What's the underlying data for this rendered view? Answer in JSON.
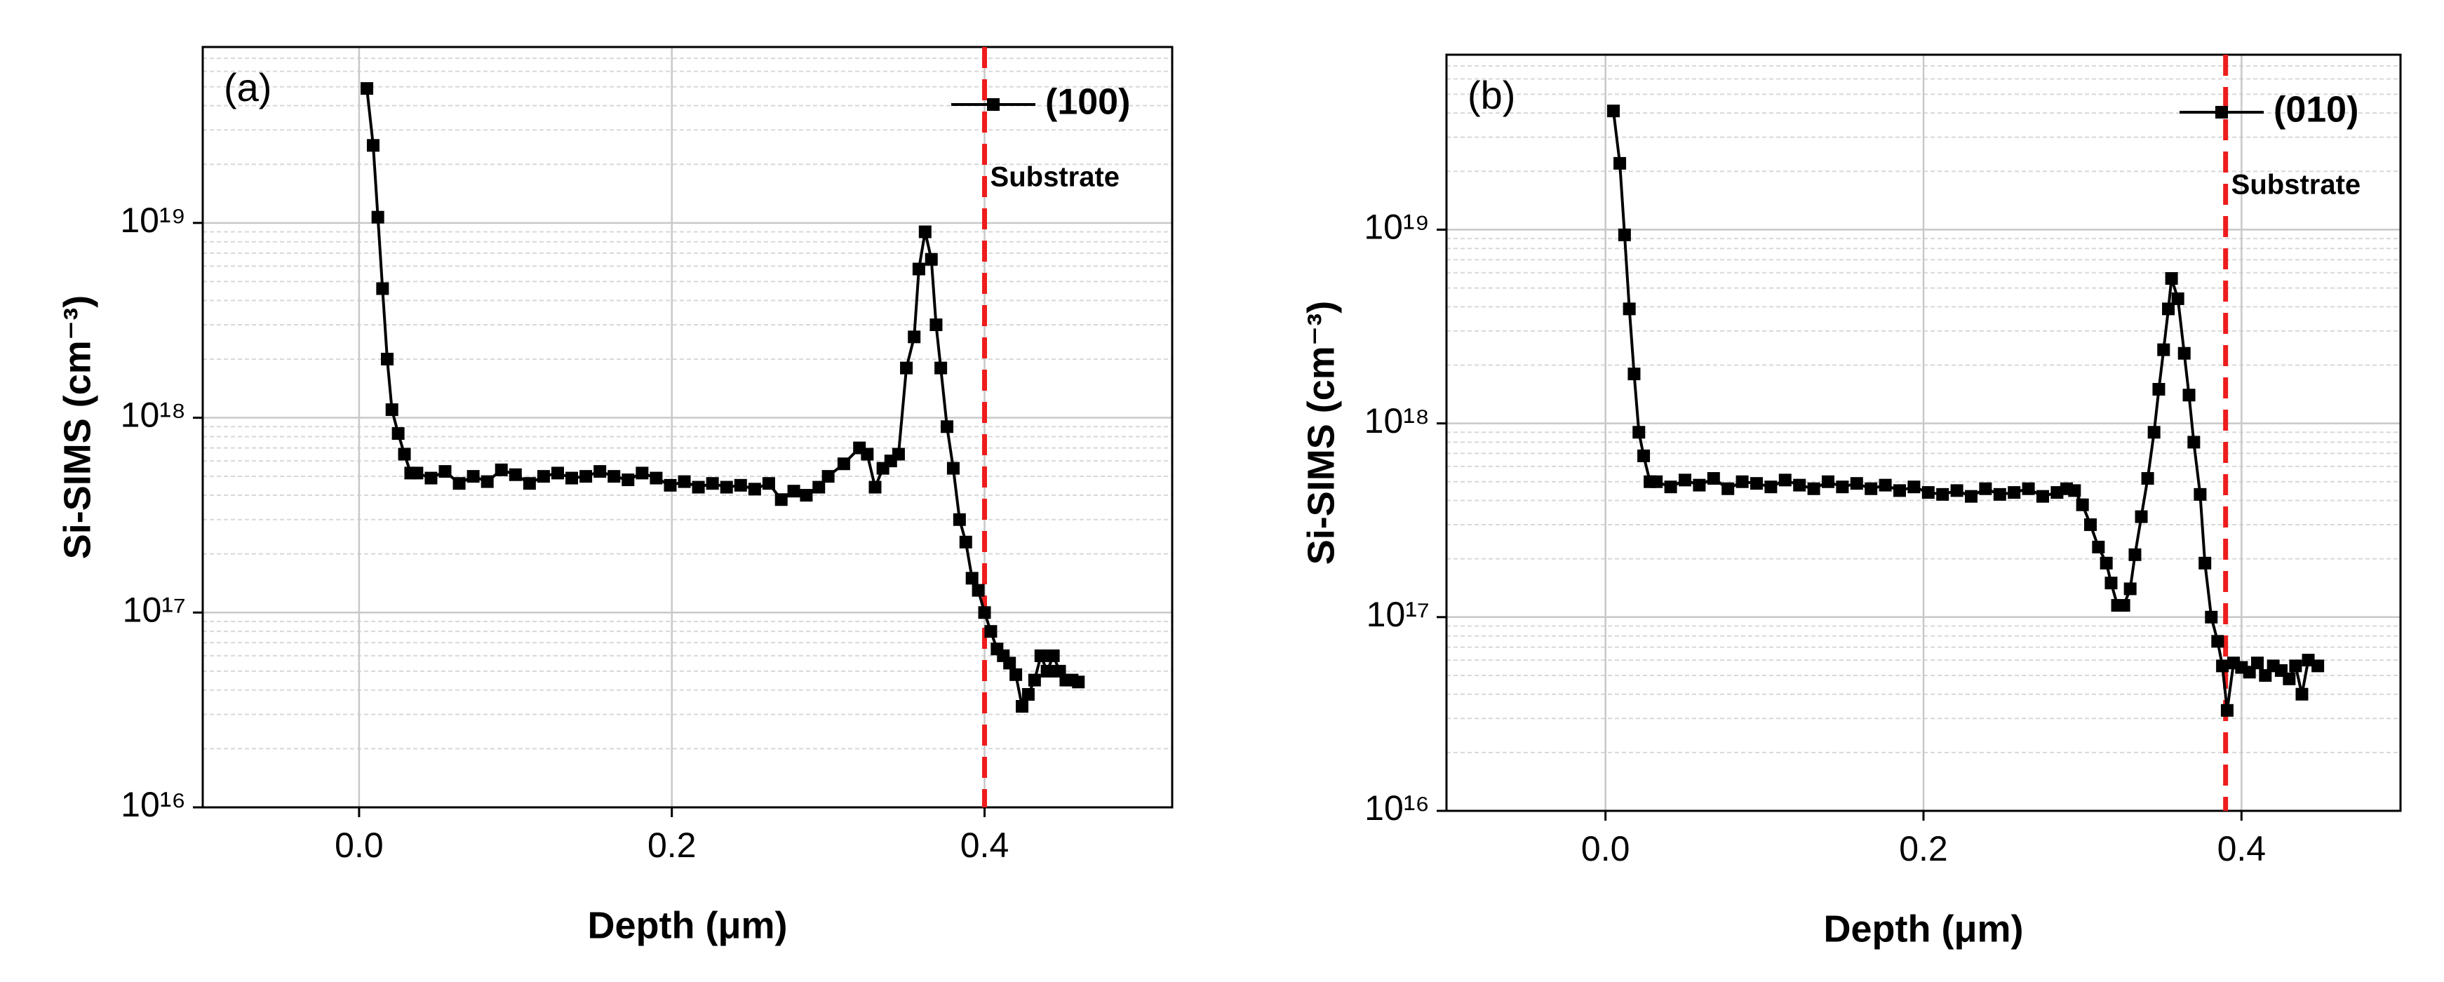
{
  "chart_data": [
    {
      "type": "line",
      "title": "(a)",
      "xlabel": "Depth (μm)",
      "ylabel": "Si-SIMS (cm⁻³)",
      "xlim": [
        -0.1,
        0.52
      ],
      "xticks": [
        {
          "value": 0,
          "label": "0.0"
        },
        0.2,
        0.4
      ],
      "ylim": [
        1e+16,
        8e+19
      ],
      "log_y": true,
      "yticks": [
        {
          "value": 1e+16,
          "label": "10¹⁶"
        },
        {
          "value": 1e+17,
          "label": "10¹⁷"
        },
        {
          "value": 1e+18,
          "label": "10¹⁸"
        },
        {
          "value": 1e+19,
          "label": "10¹⁹"
        }
      ],
      "grid": true,
      "legend_position": "upper right",
      "annotation": {
        "text": "Substrate",
        "x": 0.4,
        "color": "#ee1c1c"
      },
      "series": [
        {
          "name": "(100)",
          "color": "#000000",
          "x": [
            0.005,
            0.009,
            0.012,
            0.015,
            0.018,
            0.021,
            0.025,
            0.029,
            0.033,
            0.037,
            0.046,
            0.055,
            0.064,
            0.073,
            0.082,
            0.091,
            0.1,
            0.109,
            0.118,
            0.127,
            0.136,
            0.145,
            0.154,
            0.163,
            0.172,
            0.181,
            0.19,
            0.199,
            0.208,
            0.217,
            0.226,
            0.235,
            0.244,
            0.253,
            0.262,
            0.27,
            0.278,
            0.286,
            0.294,
            0.3,
            0.31,
            0.32,
            0.325,
            0.33,
            0.335,
            0.34,
            0.345,
            0.35,
            0.355,
            0.358,
            0.362,
            0.366,
            0.369,
            0.372,
            0.376,
            0.38,
            0.384,
            0.388,
            0.392,
            0.396,
            0.4,
            0.404,
            0.408,
            0.412,
            0.416,
            0.42,
            0.424,
            0.428,
            0.432,
            0.436,
            0.44,
            0.444,
            0.448,
            0.452,
            0.456,
            0.46
          ],
          "values": [
            4.9e+19,
            2.5e+19,
            1.07e+19,
            4.6e+18,
            2e+18,
            1.1e+18,
            8.3e+17,
            6.5e+17,
            5.2e+17,
            5.2e+17,
            4.9e+17,
            5.3e+17,
            4.6e+17,
            5e+17,
            4.7e+17,
            5.4e+17,
            5.1e+17,
            4.6e+17,
            5e+17,
            5.2e+17,
            4.9e+17,
            5e+17,
            5.3e+17,
            5e+17,
            4.8e+17,
            5.2e+17,
            4.9e+17,
            4.5e+17,
            4.7e+17,
            4.4e+17,
            4.6e+17,
            4.4e+17,
            4.5e+17,
            4.3e+17,
            4.6e+17,
            3.8e+17,
            4.2e+17,
            4e+17,
            4.4e+17,
            5e+17,
            5.8e+17,
            7e+17,
            6.5e+17,
            4.4e+17,
            5.5e+17,
            6e+17,
            6.5e+17,
            1.8e+18,
            2.6e+18,
            5.8e+18,
            9e+18,
            6.5e+18,
            3e+18,
            1.8e+18,
            9e+17,
            5.5e+17,
            3e+17,
            2.3e+17,
            1.5e+17,
            1.3e+17,
            1e+17,
            8e+16,
            6.5e+16,
            6e+16,
            5.5e+16,
            4.8e+16,
            3.3e+16,
            3.8e+16,
            4.5e+16,
            6e+16,
            5e+16,
            6e+16,
            5e+16,
            4.5e+16,
            4.5e+16,
            4.4e+16
          ]
        }
      ]
    },
    {
      "type": "line",
      "title": "(b)",
      "xlabel": "Depth (μm)",
      "ylabel": "Si-SIMS (cm⁻³)",
      "xlim": [
        -0.1,
        0.5
      ],
      "xticks": [
        {
          "value": 0,
          "label": "0.0"
        },
        0.2,
        0.4
      ],
      "ylim": [
        1e+16,
        8e+19
      ],
      "log_y": true,
      "yticks": [
        {
          "value": 1e+16,
          "label": "10¹⁶"
        },
        {
          "value": 1e+17,
          "label": "10¹⁷"
        },
        {
          "value": 1e+18,
          "label": "10¹⁸"
        },
        {
          "value": 1e+19,
          "label": "10¹⁹"
        }
      ],
      "grid": true,
      "legend_position": "upper right",
      "annotation": {
        "text": "Substrate",
        "x": 0.39,
        "color": "#ee1c1c"
      },
      "series": [
        {
          "name": "(010)",
          "color": "#000000",
          "x": [
            0.005,
            0.009,
            0.012,
            0.015,
            0.018,
            0.021,
            0.024,
            0.028,
            0.032,
            0.041,
            0.05,
            0.059,
            0.068,
            0.077,
            0.086,
            0.095,
            0.104,
            0.113,
            0.122,
            0.131,
            0.14,
            0.149,
            0.158,
            0.167,
            0.176,
            0.185,
            0.194,
            0.203,
            0.212,
            0.221,
            0.23,
            0.239,
            0.248,
            0.257,
            0.266,
            0.275,
            0.284,
            0.29,
            0.295,
            0.3,
            0.305,
            0.31,
            0.315,
            0.318,
            0.322,
            0.326,
            0.33,
            0.333,
            0.337,
            0.341,
            0.345,
            0.348,
            0.351,
            0.354,
            0.356,
            0.36,
            0.364,
            0.367,
            0.37,
            0.374,
            0.377,
            0.381,
            0.385,
            0.388,
            0.391,
            0.395,
            0.4,
            0.405,
            0.41,
            0.415,
            0.42,
            0.425,
            0.43,
            0.434,
            0.438,
            0.442,
            0.448
          ],
          "values": [
            4.1e+19,
            2.2e+19,
            9.4e+18,
            3.9e+18,
            1.8e+18,
            9e+17,
            6.8e+17,
            5e+17,
            5e+17,
            4.7e+17,
            5.1e+17,
            4.8e+17,
            5.2e+17,
            4.6e+17,
            5e+17,
            4.9e+17,
            4.7e+17,
            5.1e+17,
            4.8e+17,
            4.6e+17,
            5e+17,
            4.7e+17,
            4.9e+17,
            4.6e+17,
            4.8e+17,
            4.5e+17,
            4.7e+17,
            4.4e+17,
            4.3e+17,
            4.5e+17,
            4.2e+17,
            4.6e+17,
            4.3e+17,
            4.4e+17,
            4.6e+17,
            4.2e+17,
            4.4e+17,
            4.6e+17,
            4.5e+17,
            3.8e+17,
            3e+17,
            2.3e+17,
            1.9e+17,
            1.5e+17,
            1.15e+17,
            1.15e+17,
            1.4e+17,
            2.1e+17,
            3.3e+17,
            5.2e+17,
            9e+17,
            1.5e+18,
            2.4e+18,
            3.9e+18,
            5.6e+18,
            4.4e+18,
            2.3e+18,
            1.4e+18,
            8e+17,
            4.3e+17,
            1.9e+17,
            1e+17,
            7.5e+16,
            5.6e+16,
            3.3e+16,
            5.8e+16,
            5.5e+16,
            5.2e+16,
            5.8e+16,
            5e+16,
            5.6e+16,
            5.3e+16,
            4.8e+16,
            5.6e+16,
            4e+16,
            6e+16,
            5.6e+16
          ]
        }
      ]
    }
  ]
}
